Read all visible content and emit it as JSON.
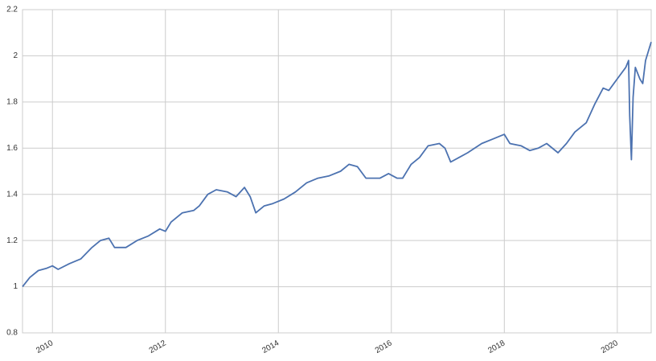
{
  "chart_data": {
    "type": "line",
    "x": [
      2009.47,
      2009.6,
      2009.75,
      2009.9,
      2010.0,
      2010.1,
      2010.3,
      2010.5,
      2010.7,
      2010.85,
      2011.0,
      2011.1,
      2011.3,
      2011.5,
      2011.7,
      2011.9,
      2012.0,
      2012.1,
      2012.3,
      2012.5,
      2012.6,
      2012.75,
      2012.9,
      2013.1,
      2013.25,
      2013.4,
      2013.5,
      2013.6,
      2013.75,
      2013.9,
      2014.1,
      2014.3,
      2014.5,
      2014.7,
      2014.9,
      2015.1,
      2015.25,
      2015.4,
      2015.55,
      2015.8,
      2015.95,
      2016.1,
      2016.2,
      2016.35,
      2016.5,
      2016.65,
      2016.85,
      2016.95,
      2017.05,
      2017.2,
      2017.35,
      2017.6,
      2017.8,
      2018.0,
      2018.1,
      2018.3,
      2018.45,
      2018.6,
      2018.75,
      2018.95,
      2019.1,
      2019.25,
      2019.45,
      2019.6,
      2019.75,
      2019.85,
      2020.0,
      2020.15,
      2020.2,
      2020.22,
      2020.25,
      2020.28,
      2020.32,
      2020.4,
      2020.45,
      2020.5,
      2020.6
    ],
    "series": [
      {
        "color": "#4c72b0",
        "values": [
          1.0,
          1.04,
          1.07,
          1.08,
          1.09,
          1.075,
          1.1,
          1.12,
          1.17,
          1.2,
          1.21,
          1.17,
          1.17,
          1.2,
          1.22,
          1.25,
          1.24,
          1.28,
          1.32,
          1.33,
          1.35,
          1.4,
          1.42,
          1.41,
          1.39,
          1.43,
          1.39,
          1.32,
          1.35,
          1.36,
          1.38,
          1.41,
          1.45,
          1.47,
          1.48,
          1.5,
          1.53,
          1.52,
          1.47,
          1.47,
          1.49,
          1.47,
          1.47,
          1.53,
          1.56,
          1.61,
          1.62,
          1.6,
          1.54,
          1.56,
          1.58,
          1.62,
          1.64,
          1.66,
          1.62,
          1.61,
          1.59,
          1.6,
          1.62,
          1.58,
          1.62,
          1.67,
          1.71,
          1.79,
          1.86,
          1.85,
          1.9,
          1.95,
          1.98,
          1.74,
          1.55,
          1.82,
          1.95,
          1.9,
          1.88,
          1.98,
          2.06
        ]
      }
    ],
    "xlim": [
      2009.47,
      2020.6
    ],
    "xticks": [
      2010,
      2012,
      2014,
      2016,
      2018,
      2020
    ],
    "ylim": [
      0.8,
      2.2
    ],
    "yticks": [
      0.8,
      1.0,
      1.2,
      1.4,
      1.6,
      1.8,
      2.0,
      2.2
    ],
    "grid": true
  }
}
